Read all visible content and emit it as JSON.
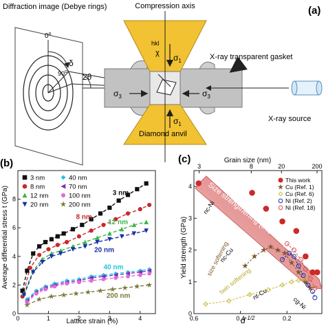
{
  "figure": {
    "panel_a": {
      "label": "(a)",
      "diffraction_title": "Diffraction image (Debye rings)",
      "compression_axis": "Compression axis",
      "gasket_label": "X-ray transparent gasket",
      "source_label": "X-ray source",
      "anvil_label": "Diamond anvil",
      "hkl": "hkl",
      "chi": "χ",
      "sigma1_top": "σ",
      "sigma1_top_sub": "1",
      "sigma1_bottom": "σ",
      "sigma1_bottom_sub": "1",
      "sigma3_left": "σ",
      "sigma3_left_sub": "3",
      "sigma3_right": "σ",
      "sigma3_right_sub": "3",
      "angle_0": "0",
      "angle_0_sup": "o",
      "angle_90": "90",
      "angle_90_sup": "o",
      "delta": "δ",
      "two_theta": "2θ",
      "colors": {
        "anvil": "#f2c232",
        "gasket": "#bfbfbf",
        "sample": "#e8e8e8"
      }
    },
    "panel_b": {
      "label": "(b)",
      "chart_data": {
        "type": "scatter",
        "xlabel": "Lattice strain (%)",
        "ylabel": "Average differential stress t (GPa)",
        "xlim": [
          0,
          4.5
        ],
        "ylim": [
          0,
          10
        ],
        "xticks": [
          0,
          1,
          2,
          3,
          4
        ],
        "yticks": [
          0,
          2,
          4,
          6,
          8
        ],
        "legend_position": "top-left",
        "series": [
          {
            "name": "3 nm",
            "color": "#111111",
            "marker": "square",
            "x": [
              0.15,
              0.3,
              0.5,
              0.7,
              0.9,
              1.1,
              1.3,
              1.5,
              1.8,
              2.1,
              2.4,
              2.7,
              3.0,
              3.3,
              3.6,
              3.9,
              4.2
            ],
            "y": [
              1.6,
              3.0,
              4.2,
              4.7,
              5.0,
              5.2,
              5.4,
              5.6,
              5.9,
              6.2,
              6.6,
              7.0,
              7.4,
              7.9,
              8.3,
              8.7,
              9.1
            ]
          },
          {
            "name": "8 nm",
            "color": "#c8282a",
            "marker": "circle",
            "x": [
              0.15,
              0.4,
              0.7,
              1.0,
              1.3,
              1.6,
              2.0,
              2.4,
              2.8,
              3.2,
              3.6,
              4.0,
              4.3
            ],
            "y": [
              1.2,
              3.2,
              4.1,
              4.5,
              4.8,
              5.0,
              5.4,
              5.8,
              6.2,
              6.6,
              7.0,
              7.3,
              7.6
            ]
          },
          {
            "name": "12 nm",
            "color": "#3cb44b",
            "marker": "triangle",
            "x": [
              0.2,
              0.5,
              0.8,
              1.1,
              1.4,
              1.8,
              2.2,
              2.6,
              3.0,
              3.4,
              3.8,
              4.2
            ],
            "y": [
              1.4,
              3.0,
              3.8,
              4.2,
              4.4,
              4.7,
              5.0,
              5.3,
              5.6,
              5.9,
              6.2,
              6.4
            ]
          },
          {
            "name": "20 nm",
            "color": "#1a2fa8",
            "marker": "triangle-down",
            "x": [
              0.2,
              0.5,
              0.8,
              1.1,
              1.4,
              1.8,
              2.2,
              2.6,
              3.0,
              3.4,
              3.8,
              4.2
            ],
            "y": [
              1.3,
              2.9,
              3.6,
              4.0,
              4.2,
              4.5,
              4.7,
              5.0,
              5.2,
              5.4,
              5.6,
              5.8
            ]
          },
          {
            "name": "40 nm",
            "color": "#22c4dc",
            "marker": "diamond",
            "x": [
              0.3,
              0.6,
              0.9,
              1.2,
              1.6,
              2.0,
              2.4,
              2.8,
              3.2,
              3.6,
              4.0,
              4.3
            ],
            "y": [
              1.0,
              1.6,
              1.9,
              2.1,
              2.3,
              2.4,
              2.6,
              2.7,
              2.8,
              2.9,
              3.0,
              3.1
            ]
          },
          {
            "name": "70 nm",
            "color": "#7a2fbf",
            "marker": "triangle-left",
            "x": [
              0.3,
              0.6,
              0.9,
              1.2,
              1.6,
              2.0,
              2.4,
              2.8,
              3.2,
              3.6,
              4.0,
              4.3
            ],
            "y": [
              0.9,
              1.5,
              1.8,
              2.0,
              2.2,
              2.3,
              2.5,
              2.6,
              2.7,
              2.8,
              2.9,
              3.0
            ]
          },
          {
            "name": "100 nm",
            "color": "#e36ad6",
            "marker": "hexagon",
            "x": [
              0.3,
              0.6,
              0.9,
              1.2,
              1.6,
              2.0,
              2.4,
              2.8,
              3.2,
              3.6,
              4.0,
              4.3
            ],
            "y": [
              0.8,
              1.4,
              1.7,
              1.9,
              2.1,
              2.2,
              2.3,
              2.4,
              2.5,
              2.6,
              2.7,
              2.8
            ]
          },
          {
            "name": "200 nm",
            "color": "#7d7a3a",
            "marker": "star",
            "x": [
              0.3,
              0.7,
              1.1,
              1.5,
              1.9,
              2.3,
              2.7,
              3.1,
              3.5,
              3.9,
              4.3
            ],
            "y": [
              0.6,
              1.0,
              1.2,
              1.3,
              1.4,
              1.5,
              1.6,
              1.7,
              1.8,
              1.9,
              2.0
            ]
          }
        ],
        "annotations": [
          {
            "text": "3 nm",
            "color": "#111111",
            "x": 3.1,
            "y": 8.3
          },
          {
            "text": "8 nm",
            "color": "#c8282a",
            "x": 1.9,
            "y": 6.6
          },
          {
            "text": "12 nm",
            "color": "#3cb44b",
            "x": 2.95,
            "y": 6.25
          },
          {
            "text": "20 nm",
            "color": "#1a2fa8",
            "x": 2.5,
            "y": 4.3
          },
          {
            "text": "40 nm",
            "color": "#22c4dc",
            "x": 2.8,
            "y": 3.1
          },
          {
            "text": "200 nm",
            "color": "#7d7a3a",
            "x": 2.9,
            "y": 1.1
          }
        ]
      }
    },
    "panel_c": {
      "label": "(c)",
      "chart_data": {
        "type": "scatter",
        "top_xlabel": "Grain size (nm)",
        "top_ticks": [
          "3",
          "8",
          "20",
          "200"
        ],
        "xlabel_main": "d",
        "xlabel_sup": "-1/2",
        "ylabel": "Yield strength (GPa)",
        "xlim": [
          0.6,
          0.05
        ],
        "ylim": [
          0,
          4.5
        ],
        "xticks": [
          0.6,
          0.4,
          0.2
        ],
        "xtick_labels": [
          "0.6",
          "0.4",
          "0.2"
        ],
        "yticks": [
          0,
          1,
          2,
          3,
          4
        ],
        "legend_position": "top-right",
        "series": [
          {
            "name": "This work",
            "color": "#cc2a2a",
            "marker": "circle-filled",
            "x": [
              0.58,
              0.35,
              0.29,
              0.22,
              0.16,
              0.12,
              0.09,
              0.07
            ],
            "y": [
              4.1,
              3.8,
              3.3,
              2.9,
              2.6,
              1.8,
              1.3,
              1.3
            ]
          },
          {
            "name": "Cu (Ref. 1)",
            "color": "#7d5a2a",
            "marker": "star",
            "x": [
              0.38,
              0.34,
              0.3,
              0.27,
              0.24,
              0.21,
              0.18,
              0.15,
              0.12,
              0.1
            ],
            "y": [
              1.5,
              1.8,
              2.0,
              2.1,
              2.0,
              1.9,
              1.6,
              1.3,
              1.0,
              0.8
            ]
          },
          {
            "name": "Cu (Ref. 6)",
            "color": "#c9b83a",
            "marker": "diamond-open",
            "x": [
              0.55,
              0.45,
              0.36,
              0.28,
              0.22,
              0.18,
              0.15,
              0.12
            ],
            "y": [
              0.3,
              0.4,
              0.6,
              0.75,
              0.9,
              1.0,
              1.05,
              1.1
            ]
          },
          {
            "name": "Ni (Ref. 2)",
            "color": "#1a2fa8",
            "marker": "circle-open",
            "x": [
              0.22,
              0.19,
              0.17,
              0.15,
              0.13,
              0.11,
              0.09,
              0.08
            ],
            "y": [
              1.7,
              1.9,
              1.8,
              1.5,
              1.2,
              0.9,
              0.7,
              0.5
            ]
          },
          {
            "name": "Ni (Ref. 18)",
            "color": "#d65050",
            "marker": "circle-open",
            "x": [
              0.2,
              0.17,
              0.14,
              0.12,
              0.1,
              0.08
            ],
            "y": [
              2.2,
              2.0,
              1.7,
              1.4,
              1.1,
              0.8
            ]
          }
        ],
        "annotations": {
          "arrow_text": "Size strengthening (this work)",
          "nc_ni": "nc-Ni",
          "size_softening": "size softening",
          "nc_cu": "nc-Cu",
          "twin_softening": "twin softening",
          "nt_cu": "nt-Cu",
          "cg_ni": "cg-Ni"
        }
      }
    }
  }
}
